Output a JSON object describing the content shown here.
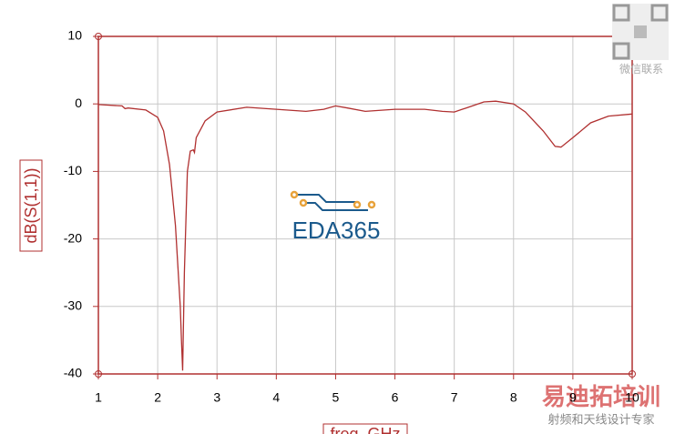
{
  "chart_data": {
    "type": "line",
    "x_label": "freq, GHz",
    "y_label": "dB(S(1,1))",
    "xlim": [
      1,
      10
    ],
    "xticks": [
      1,
      2,
      3,
      4,
      5,
      6,
      7,
      8,
      9,
      10
    ],
    "ylim": [
      -40,
      10
    ],
    "yticks": [
      -40,
      -30,
      -20,
      -10,
      0,
      10
    ],
    "grid": true,
    "series": [
      {
        "color": "#b03030",
        "x": [
          1.0,
          1.4,
          1.45,
          1.5,
          1.8,
          2.0,
          2.1,
          2.2,
          2.3,
          2.38,
          2.4,
          2.42,
          2.45,
          2.5,
          2.55,
          2.6,
          2.62,
          2.65,
          2.8,
          3.0,
          3.5,
          4.0,
          4.5,
          4.8,
          5.0,
          5.2,
          5.5,
          6.0,
          6.5,
          6.8,
          7.0,
          7.2,
          7.5,
          7.7,
          8.0,
          8.2,
          8.5,
          8.7,
          8.8,
          9.0,
          9.3,
          9.6,
          10.0
        ],
        "values": [
          -0.1,
          -0.3,
          -0.7,
          -0.6,
          -0.9,
          -2,
          -4,
          -9,
          -18,
          -30,
          -35,
          -39.5,
          -25,
          -10,
          -7,
          -6.8,
          -7.2,
          -5,
          -2.5,
          -1.2,
          -0.5,
          -0.8,
          -1.1,
          -0.8,
          -0.3,
          -0.6,
          -1.1,
          -0.8,
          -0.8,
          -1.1,
          -1.2,
          -0.6,
          0.3,
          0.4,
          0,
          -1.2,
          -4,
          -6.3,
          -6.4,
          -5,
          -2.8,
          -1.8,
          -1.5
        ]
      }
    ]
  },
  "watermarks": {
    "logo": "EDA365",
    "qr_caption": "微信联系",
    "brand": "易迪拓培训",
    "slogan": "射频和天线设计专家"
  }
}
